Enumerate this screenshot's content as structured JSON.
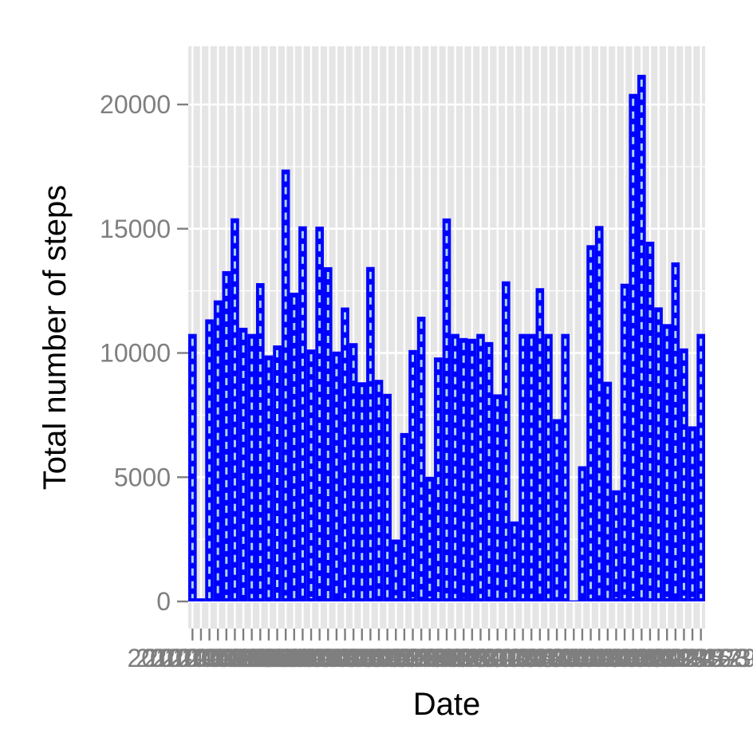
{
  "chart_data": {
    "type": "bar",
    "title": "",
    "xlabel": "Date",
    "ylabel": "Total number of steps",
    "ylim": [
      0,
      22500
    ],
    "yticks": [
      0,
      5000,
      10000,
      15000,
      20000
    ],
    "ytick_labels": [
      "0",
      "5000",
      "10000",
      "15000",
      "20000"
    ],
    "grid": true,
    "legend": "none",
    "colors": {
      "panel_bg": "#e5e5e5",
      "grid": "#ffffff",
      "bar_fill": "#0000ff",
      "bar_stripe": "#a8d8f0",
      "tick_text": "#7f7f7f"
    },
    "categories": [
      "2012-10-01",
      "2012-10-02",
      "2012-10-03",
      "2012-10-04",
      "2012-10-05",
      "2012-10-06",
      "2012-10-07",
      "2012-10-08",
      "2012-10-09",
      "2012-10-10",
      "2012-10-11",
      "2012-10-12",
      "2012-10-13",
      "2012-10-14",
      "2012-10-15",
      "2012-10-16",
      "2012-10-17",
      "2012-10-18",
      "2012-10-19",
      "2012-10-20",
      "2012-10-21",
      "2012-10-22",
      "2012-10-23",
      "2012-10-24",
      "2012-10-25",
      "2012-10-26",
      "2012-10-27",
      "2012-10-28",
      "2012-10-29",
      "2012-10-30",
      "2012-10-31",
      "2012-11-01",
      "2012-11-02",
      "2012-11-03",
      "2012-11-04",
      "2012-11-05",
      "2012-11-06",
      "2012-11-07",
      "2012-11-08",
      "2012-11-09",
      "2012-11-10",
      "2012-11-11",
      "2012-11-12",
      "2012-11-13",
      "2012-11-14",
      "2012-11-15",
      "2012-11-16",
      "2012-11-17",
      "2012-11-18",
      "2012-11-19",
      "2012-11-20",
      "2012-11-21",
      "2012-11-22",
      "2012-11-23",
      "2012-11-24",
      "2012-11-25",
      "2012-11-26",
      "2012-11-27",
      "2012-11-28",
      "2012-11-29",
      "2012-11-30"
    ],
    "values": [
      10766,
      126,
      11352,
      12116,
      13294,
      15420,
      11015,
      10766,
      12811,
      9900,
      10304,
      17382,
      12426,
      15098,
      10139,
      15084,
      13452,
      10056,
      11829,
      10395,
      8821,
      13460,
      8918,
      8355,
      2492,
      6778,
      10119,
      11458,
      5018,
      9819,
      15414,
      10766,
      10600,
      10571,
      10766,
      10439,
      8334,
      12883,
      3219,
      10766,
      10766,
      12608,
      10765,
      7336,
      10766,
      41,
      5441,
      14339,
      15110,
      8841,
      4472,
      12787,
      20427,
      21194,
      14478,
      11834,
      11162,
      13646,
      10183,
      7047,
      10766
    ]
  }
}
